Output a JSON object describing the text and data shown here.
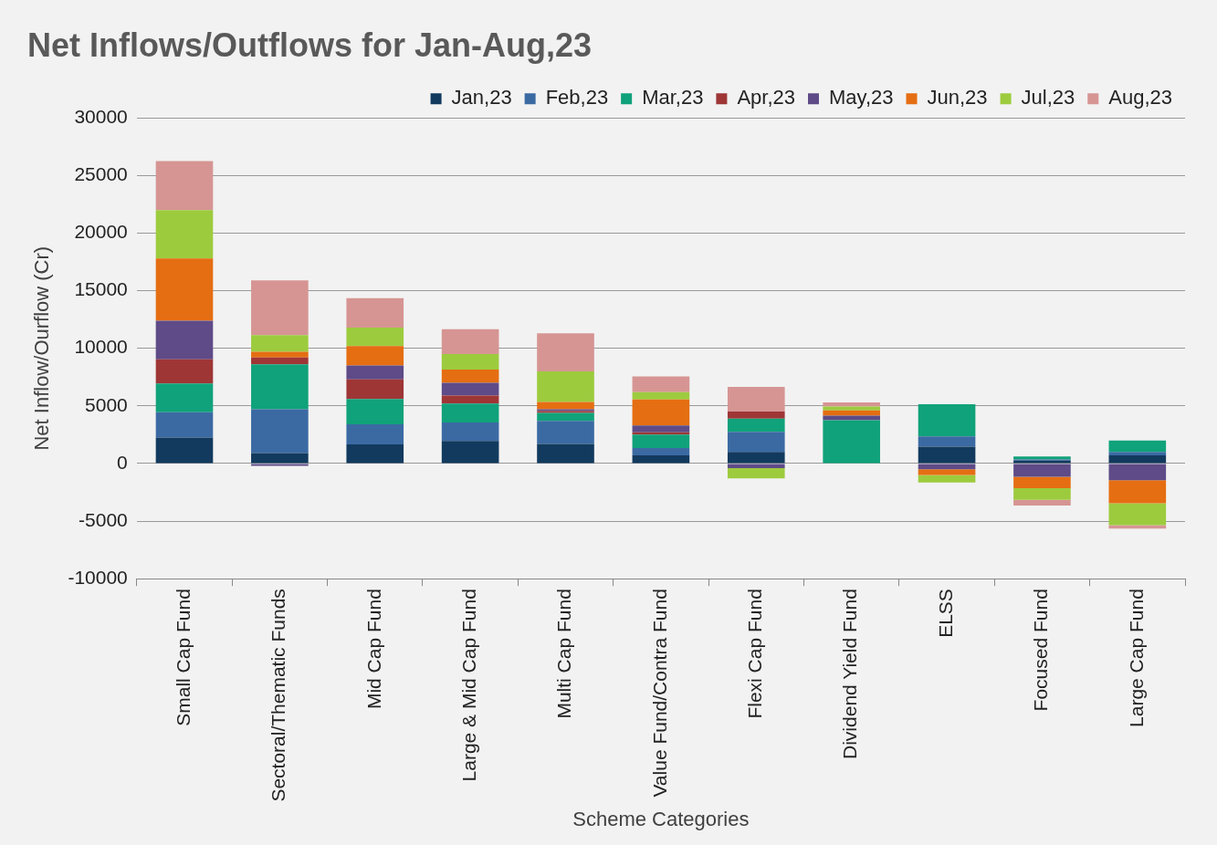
{
  "chart_data": {
    "type": "bar",
    "title": "Net Inflows/Outflows for Jan-Aug,23",
    "xlabel": "Scheme Categories",
    "ylabel": "Net Inflow/Ourflow (Cr)",
    "categories": [
      "Small Cap Fund",
      "Sectoral/Thematic Funds",
      "Mid Cap Fund",
      "Large & Mid Cap Fund",
      "Multi Cap Fund",
      "Value Fund/Contra Fund",
      "Flexi Cap Fund",
      "Dividend Yield Fund",
      "ELSS",
      "Focused Fund",
      "Large Cap Fund"
    ],
    "stacked": true,
    "ylim": [
      -10000,
      30000
    ],
    "yticks": [
      -10000,
      -5000,
      0,
      5000,
      10000,
      15000,
      20000,
      25000,
      30000
    ],
    "grid": "y",
    "legend": "top",
    "series": [
      {
        "name": "Jan,23",
        "color": "#123a5e",
        "values": [
          2250,
          900,
          1650,
          1950,
          1700,
          700,
          1000,
          0,
          1450,
          250,
          700
        ]
      },
      {
        "name": "Feb,23",
        "color": "#3b6aa3",
        "values": [
          2200,
          3800,
          1750,
          1600,
          2000,
          650,
          1750,
          0,
          900,
          100,
          300
        ]
      },
      {
        "name": "Mar,23",
        "color": "#10a27a",
        "values": [
          2500,
          3900,
          2200,
          1650,
          700,
          1150,
          1150,
          3750,
          2800,
          250,
          1000
        ]
      },
      {
        "name": "Apr,23",
        "color": "#9e3636",
        "values": [
          2100,
          600,
          1700,
          700,
          150,
          200,
          600,
          0,
          0,
          0,
          0
        ]
      },
      {
        "name": "May,23",
        "color": "#5e4b87",
        "values": [
          3350,
          -200,
          1200,
          1100,
          150,
          600,
          -400,
          400,
          -500,
          -1150,
          -1450
        ]
      },
      {
        "name": "Jun,23",
        "color": "#e56e12",
        "values": [
          5400,
          500,
          1700,
          1150,
          650,
          2250,
          0,
          450,
          -500,
          -1000,
          -2000
        ]
      },
      {
        "name": "Jul,23",
        "color": "#9dcb3e",
        "values": [
          4200,
          1450,
          1600,
          1350,
          2650,
          650,
          -900,
          350,
          -650,
          -1000,
          -1900
        ]
      },
      {
        "name": "Aug,23",
        "color": "#d69593",
        "values": [
          4250,
          4750,
          2550,
          2150,
          3300,
          1350,
          2150,
          350,
          0,
          -500,
          -300
        ]
      }
    ]
  }
}
